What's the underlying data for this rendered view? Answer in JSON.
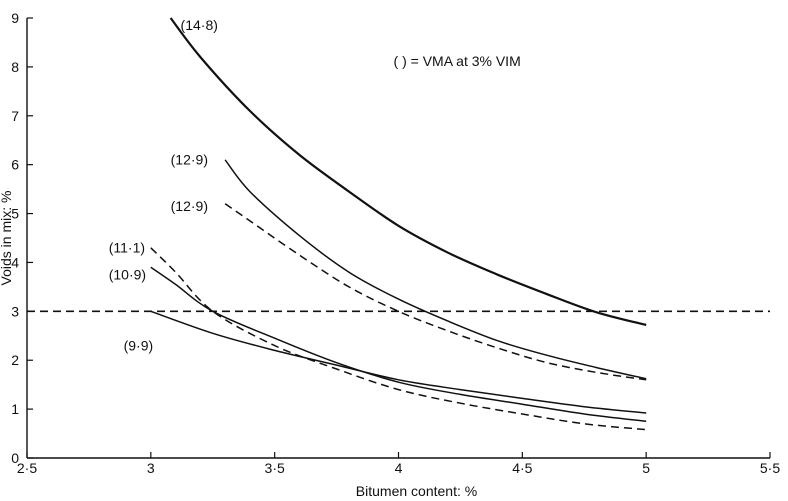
{
  "chart_data": {
    "type": "line",
    "title": "",
    "xlabel": "Bitumen content: %",
    "ylabel": "Voids in mix: %",
    "xlim": [
      2.5,
      5.5
    ],
    "ylim": [
      0,
      9
    ],
    "x_ticks": [
      2.5,
      3,
      3.5,
      4,
      4.5,
      5,
      5.5
    ],
    "x_tick_labels": [
      "2·5",
      "3",
      "3·5",
      "4",
      "4·5",
      "5",
      "5·5"
    ],
    "y_ticks": [
      0,
      1,
      2,
      3,
      4,
      5,
      6,
      7,
      8,
      9
    ],
    "y_tick_labels": [
      "0",
      "1",
      "2",
      "3",
      "4",
      "5",
      "6",
      "7",
      "8",
      "9"
    ],
    "grid": false,
    "legend": "( ) = VMA at 3% VIM",
    "series": [
      {
        "name": "(14·8)",
        "style": "solid-thick",
        "points": [
          [
            3.08,
            9.0
          ],
          [
            3.2,
            8.2
          ],
          [
            3.4,
            7.1
          ],
          [
            3.6,
            6.2
          ],
          [
            3.8,
            5.45
          ],
          [
            4.0,
            4.75
          ],
          [
            4.2,
            4.2
          ],
          [
            4.4,
            3.75
          ],
          [
            4.6,
            3.35
          ],
          [
            4.8,
            2.98
          ],
          [
            5.0,
            2.72
          ]
        ]
      },
      {
        "name": "(12·9)",
        "style": "solid",
        "points": [
          [
            3.3,
            6.1
          ],
          [
            3.4,
            5.45
          ],
          [
            3.6,
            4.55
          ],
          [
            3.8,
            3.8
          ],
          [
            4.0,
            3.25
          ],
          [
            4.2,
            2.8
          ],
          [
            4.4,
            2.4
          ],
          [
            4.6,
            2.1
          ],
          [
            4.8,
            1.85
          ],
          [
            5.0,
            1.62
          ]
        ]
      },
      {
        "name": "(12·9)",
        "style": "dashed",
        "points": [
          [
            3.3,
            5.2
          ],
          [
            3.4,
            4.85
          ],
          [
            3.6,
            4.15
          ],
          [
            3.8,
            3.5
          ],
          [
            4.0,
            3.0
          ],
          [
            4.2,
            2.6
          ],
          [
            4.4,
            2.25
          ],
          [
            4.6,
            1.95
          ],
          [
            4.8,
            1.75
          ],
          [
            5.0,
            1.6
          ]
        ]
      },
      {
        "name": "(11·1)",
        "style": "dashed",
        "points": [
          [
            3.0,
            4.3
          ],
          [
            3.1,
            3.8
          ],
          [
            3.25,
            3.0
          ],
          [
            3.5,
            2.3
          ],
          [
            3.75,
            1.82
          ],
          [
            4.0,
            1.4
          ],
          [
            4.25,
            1.12
          ],
          [
            4.5,
            0.9
          ],
          [
            4.75,
            0.7
          ],
          [
            5.0,
            0.58
          ]
        ]
      },
      {
        "name": "(10·9)",
        "style": "solid",
        "points": [
          [
            3.0,
            3.9
          ],
          [
            3.1,
            3.55
          ],
          [
            3.25,
            3.0
          ],
          [
            3.5,
            2.45
          ],
          [
            3.75,
            1.95
          ],
          [
            4.0,
            1.55
          ],
          [
            4.25,
            1.3
          ],
          [
            4.5,
            1.1
          ],
          [
            4.75,
            0.9
          ],
          [
            5.0,
            0.75
          ]
        ]
      },
      {
        "name": "(9·9)",
        "style": "solid",
        "points": [
          [
            3.0,
            3.0
          ],
          [
            3.25,
            2.55
          ],
          [
            3.5,
            2.2
          ],
          [
            3.75,
            1.9
          ],
          [
            4.0,
            1.6
          ],
          [
            4.25,
            1.4
          ],
          [
            4.5,
            1.22
          ],
          [
            4.75,
            1.05
          ],
          [
            5.0,
            0.92
          ]
        ]
      }
    ],
    "reference_lines": [
      {
        "axis": "y",
        "value": 3,
        "style": "dashed"
      }
    ]
  }
}
